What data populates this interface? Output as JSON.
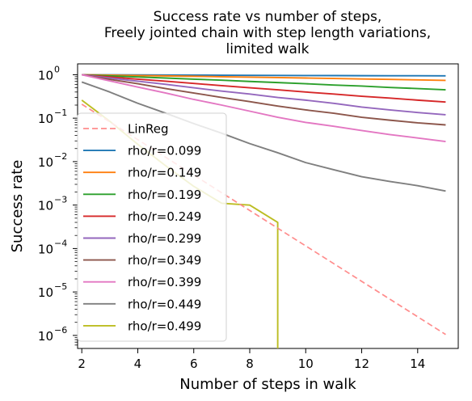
{
  "chart_data": {
    "type": "line",
    "title": [
      "Success rate vs number of steps,",
      "Freely jointed chain with step length variations,",
      "limited walk"
    ],
    "xlabel": "Number of steps in walk",
    "ylabel": "Success rate",
    "xlim": [
      1.85,
      15.45
    ],
    "ylim_log10": [
      -6.3,
      0.25
    ],
    "yscale": "log",
    "x_ticks": [
      2,
      4,
      6,
      8,
      10,
      12,
      14
    ],
    "y_ticks": [
      {
        "exp": 0,
        "base": "10",
        "sup": "0"
      },
      {
        "exp": -1,
        "base": "10",
        "sup": "−1"
      },
      {
        "exp": -2,
        "base": "10",
        "sup": "−2"
      },
      {
        "exp": -3,
        "base": "10",
        "sup": "−3"
      },
      {
        "exp": -4,
        "base": "10",
        "sup": "−4"
      },
      {
        "exp": -5,
        "base": "10",
        "sup": "−5"
      },
      {
        "exp": -6,
        "base": "10",
        "sup": "−6"
      }
    ],
    "grid": false,
    "legend_position": "lower-left",
    "series": [
      {
        "name": "LinReg",
        "color": "#ff8c8c",
        "dashed": true,
        "x": [
          2,
          15
        ],
        "y": [
          0.21,
          1.05e-06
        ]
      },
      {
        "name": "rho/r=0.099",
        "color": "#1f77b4",
        "x": [
          2,
          3,
          4,
          5,
          6,
          7,
          8,
          9,
          10,
          11,
          12,
          13,
          14,
          15
        ],
        "y": [
          1.0,
          0.995,
          0.99,
          0.985,
          0.98,
          0.975,
          0.97,
          0.965,
          0.96,
          0.955,
          0.95,
          0.948,
          0.946,
          0.944
        ]
      },
      {
        "name": "rho/r=0.149",
        "color": "#ff7f0e",
        "x": [
          2,
          3,
          4,
          5,
          6,
          7,
          8,
          9,
          10,
          11,
          12,
          13,
          14,
          15
        ],
        "y": [
          1.0,
          0.98,
          0.96,
          0.94,
          0.92,
          0.9,
          0.88,
          0.86,
          0.84,
          0.82,
          0.8,
          0.78,
          0.76,
          0.74
        ]
      },
      {
        "name": "rho/r=0.199",
        "color": "#2ca02c",
        "x": [
          2,
          3,
          4,
          5,
          6,
          7,
          8,
          9,
          10,
          11,
          12,
          13,
          14,
          15
        ],
        "y": [
          1.0,
          0.94,
          0.89,
          0.84,
          0.79,
          0.75,
          0.7,
          0.66,
          0.62,
          0.58,
          0.55,
          0.51,
          0.48,
          0.45
        ]
      },
      {
        "name": "rho/r=0.249",
        "color": "#d62728",
        "x": [
          2,
          3,
          4,
          5,
          6,
          7,
          8,
          9,
          10,
          11,
          12,
          13,
          14,
          15
        ],
        "y": [
          1.0,
          0.89,
          0.79,
          0.71,
          0.63,
          0.56,
          0.5,
          0.45,
          0.4,
          0.36,
          0.32,
          0.29,
          0.26,
          0.235
        ]
      },
      {
        "name": "rho/r=0.299",
        "color": "#9467bd",
        "x": [
          2,
          3,
          4,
          5,
          6,
          7,
          8,
          9,
          10,
          11,
          12,
          13,
          14,
          15
        ],
        "y": [
          1.0,
          0.84,
          0.71,
          0.6,
          0.5,
          0.42,
          0.36,
          0.3,
          0.26,
          0.22,
          0.18,
          0.155,
          0.135,
          0.12
        ]
      },
      {
        "name": "rho/r=0.349",
        "color": "#8c564b",
        "x": [
          2,
          3,
          4,
          5,
          6,
          7,
          8,
          9,
          10,
          11,
          12,
          13,
          14,
          15
        ],
        "y": [
          1.0,
          0.78,
          0.62,
          0.48,
          0.38,
          0.3,
          0.24,
          0.19,
          0.155,
          0.13,
          0.105,
          0.09,
          0.078,
          0.07
        ]
      },
      {
        "name": "rho/r=0.399",
        "color": "#e377c2",
        "x": [
          2,
          3,
          4,
          5,
          6,
          7,
          8,
          9,
          10,
          11,
          12,
          13,
          14,
          15
        ],
        "y": [
          1.0,
          0.72,
          0.52,
          0.38,
          0.27,
          0.2,
          0.145,
          0.105,
          0.08,
          0.065,
          0.052,
          0.042,
          0.035,
          0.029
        ]
      },
      {
        "name": "rho/r=0.449",
        "color": "#7f7f7f",
        "x": [
          2,
          3,
          4,
          5,
          6,
          7,
          8,
          9,
          10,
          11,
          12,
          13,
          14,
          15
        ],
        "y": [
          0.68,
          0.4,
          0.22,
          0.13,
          0.075,
          0.045,
          0.026,
          0.016,
          0.0095,
          0.0065,
          0.0045,
          0.0035,
          0.0028,
          0.0021
        ]
      },
      {
        "name": "rho/r=0.499",
        "color": "#bcbd22",
        "x": [
          2,
          3,
          4,
          5,
          6,
          7,
          8,
          9,
          9
        ],
        "y": [
          0.26,
          0.085,
          0.025,
          0.008,
          0.0027,
          0.0011,
          0.001,
          0.0004,
          5e-07
        ]
      }
    ]
  }
}
